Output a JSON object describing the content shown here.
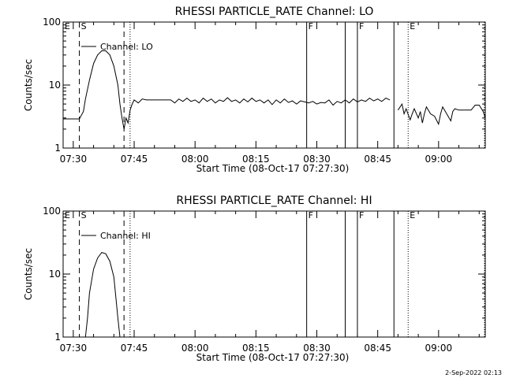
{
  "footer": {
    "timestamp": "2-Sep-2022 02:13"
  },
  "chart_data": [
    {
      "type": "line",
      "title": "RHESSI PARTICLE_RATE Channel: LO",
      "xlabel": "Start Time (08-Oct-17 07:27:30)",
      "ylabel": "Counts/sec",
      "yscale": "log",
      "ylim": [
        1,
        100
      ],
      "xlim": [
        "07:27:30",
        "09:11:30"
      ],
      "x_ticks": [
        "07:30",
        "07:45",
        "08:00",
        "08:15",
        "08:30",
        "08:45",
        "09:00"
      ],
      "y_ticks": [
        "1",
        "10",
        "100"
      ],
      "legend": "Channel: LO",
      "event_marks": [
        {
          "label": "E",
          "time": "07:27:30",
          "style": "none"
        },
        {
          "label": "S",
          "time": "07:31:30",
          "style": "dashed"
        },
        {
          "label": "",
          "time": "07:42:30",
          "style": "dashed"
        },
        {
          "label": "",
          "time": "07:44:00",
          "style": "dotted"
        },
        {
          "label": "F",
          "time": "08:27:30",
          "style": "solid"
        },
        {
          "label": "",
          "time": "08:37:00",
          "style": "solid"
        },
        {
          "label": "F",
          "time": "08:40:00",
          "style": "solid"
        },
        {
          "label": "",
          "time": "08:49:00",
          "style": "solid"
        },
        {
          "label": "E",
          "time": "08:52:30",
          "style": "dotted"
        },
        {
          "label": "",
          "time": "09:12:30",
          "style": "dotted"
        }
      ],
      "series": [
        {
          "segments": [
            [
              [
                "07:27:30",
                2.9
              ],
              [
                "07:31:30",
                2.9
              ],
              [
                "07:32:30",
                3.8
              ],
              [
                "07:33:00",
                6
              ],
              [
                "07:34:00",
                12
              ],
              [
                "07:35:00",
                22
              ],
              [
                "07:36:00",
                30
              ],
              [
                "07:37:00",
                35
              ],
              [
                "07:38:00",
                35
              ],
              [
                "07:39:00",
                30
              ],
              [
                "07:40:00",
                20
              ],
              [
                "07:41:00",
                10
              ],
              [
                "07:41:30",
                5
              ],
              [
                "07:42:00",
                3
              ],
              [
                "07:42:30",
                2
              ],
              [
                "07:43:00",
                3
              ],
              [
                "07:43:30",
                2.5
              ],
              [
                "07:44:00",
                4
              ],
              [
                "07:44:30",
                5
              ],
              [
                "07:45:00",
                5.8
              ],
              [
                "07:46:00",
                5.2
              ],
              [
                "07:47:00",
                6
              ],
              [
                "07:48:00",
                5.8
              ],
              [
                "07:50:00",
                5.8
              ],
              [
                "07:52:00",
                5.8
              ],
              [
                "07:54:00",
                5.8
              ],
              [
                "07:55:00",
                5.2
              ],
              [
                "07:56:00",
                6
              ],
              [
                "07:57:00",
                5.5
              ],
              [
                "07:58:00",
                6.2
              ],
              [
                "07:59:00",
                5.5
              ],
              [
                "08:00:00",
                5.8
              ],
              [
                "08:01:00",
                5.2
              ],
              [
                "08:02:00",
                6.2
              ],
              [
                "08:03:00",
                5.5
              ],
              [
                "08:04:00",
                6
              ],
              [
                "08:05:00",
                5.2
              ],
              [
                "08:06:00",
                5.8
              ],
              [
                "08:07:00",
                5.5
              ],
              [
                "08:08:00",
                6.3
              ],
              [
                "08:09:00",
                5.5
              ],
              [
                "08:10:00",
                5.8
              ],
              [
                "08:11:00",
                5.2
              ],
              [
                "08:12:00",
                6
              ],
              [
                "08:13:00",
                5.4
              ],
              [
                "08:14:00",
                6.2
              ],
              [
                "08:15:00",
                5.5
              ],
              [
                "08:16:00",
                5.8
              ],
              [
                "08:17:00",
                5.2
              ],
              [
                "08:18:00",
                5.8
              ],
              [
                "08:19:00",
                4.9
              ],
              [
                "08:20:00",
                5.8
              ],
              [
                "08:21:00",
                5.2
              ],
              [
                "08:22:00",
                6
              ],
              [
                "08:23:00",
                5.3
              ],
              [
                "08:24:00",
                5.6
              ],
              [
                "08:25:00",
                5
              ],
              [
                "08:26:00",
                5.6
              ],
              [
                "08:27:00",
                5.4
              ],
              [
                "08:28:00",
                5.2
              ],
              [
                "08:29:00",
                5.5
              ],
              [
                "08:30:00",
                5
              ],
              [
                "08:31:00",
                5.3
              ],
              [
                "08:32:00",
                5.2
              ],
              [
                "08:33:00",
                5.8
              ],
              [
                "08:34:00",
                4.8
              ],
              [
                "08:35:00",
                5.5
              ],
              [
                "08:36:00",
                5.2
              ],
              [
                "08:37:00",
                5.8
              ],
              [
                "08:38:00",
                5.2
              ],
              [
                "08:39:00",
                6
              ],
              [
                "08:40:00",
                5.4
              ],
              [
                "08:41:00",
                5.8
              ],
              [
                "08:42:00",
                5.5
              ],
              [
                "08:43:00",
                6.2
              ],
              [
                "08:44:00",
                5.6
              ],
              [
                "08:45:00",
                6
              ],
              [
                "08:46:00",
                5.5
              ],
              [
                "08:47:00",
                6.2
              ],
              [
                "08:48:00",
                5.8
              ]
            ],
            [
              [
                "08:50:00",
                4
              ],
              [
                "08:51:00",
                5
              ],
              [
                "08:51:30",
                3.5
              ],
              [
                "08:52:00",
                4.2
              ],
              [
                "08:53:00",
                2.8
              ],
              [
                "08:53:30",
                3.5
              ],
              [
                "08:54:00",
                4.2
              ],
              [
                "08:55:00",
                3
              ],
              [
                "08:55:30",
                3.8
              ],
              [
                "08:56:00",
                2.5
              ],
              [
                "08:56:30",
                3.5
              ],
              [
                "08:57:00",
                4.5
              ],
              [
                "08:58:00",
                3.5
              ],
              [
                "08:59:00",
                3.2
              ],
              [
                "09:00:00",
                2.4
              ],
              [
                "09:00:30",
                3.5
              ],
              [
                "09:01:00",
                4.5
              ],
              [
                "09:02:00",
                3.5
              ],
              [
                "09:03:00",
                2.7
              ],
              [
                "09:03:30",
                3.8
              ],
              [
                "09:04:00",
                4.2
              ],
              [
                "09:05:00",
                4
              ],
              [
                "09:06:00",
                4
              ],
              [
                "09:07:00",
                4
              ],
              [
                "09:08:00",
                4
              ],
              [
                "09:09:00",
                4.8
              ],
              [
                "09:10:00",
                4.8
              ],
              [
                "09:11:00",
                3.8
              ],
              [
                "09:11:30",
                3
              ]
            ]
          ]
        }
      ]
    },
    {
      "type": "line",
      "title": "RHESSI PARTICLE_RATE Channel: HI",
      "xlabel": "Start Time (08-Oct-17 07:27:30)",
      "ylabel": "Counts/sec",
      "yscale": "log",
      "ylim": [
        1,
        100
      ],
      "xlim": [
        "07:27:30",
        "09:11:30"
      ],
      "x_ticks": [
        "07:30",
        "07:45",
        "08:00",
        "08:15",
        "08:30",
        "08:45",
        "09:00"
      ],
      "y_ticks": [
        "1",
        "10",
        "100"
      ],
      "legend": "Channel: HI",
      "event_marks": [
        {
          "label": "E",
          "time": "07:27:30",
          "style": "none"
        },
        {
          "label": "S",
          "time": "07:31:30",
          "style": "dashed"
        },
        {
          "label": "",
          "time": "07:42:30",
          "style": "dashed"
        },
        {
          "label": "",
          "time": "07:44:00",
          "style": "dotted"
        },
        {
          "label": "F",
          "time": "08:27:30",
          "style": "solid"
        },
        {
          "label": "",
          "time": "08:37:00",
          "style": "solid"
        },
        {
          "label": "F",
          "time": "08:40:00",
          "style": "solid"
        },
        {
          "label": "",
          "time": "08:49:00",
          "style": "solid"
        },
        {
          "label": "E",
          "time": "08:52:30",
          "style": "dotted"
        },
        {
          "label": "",
          "time": "09:12:30",
          "style": "dotted"
        }
      ],
      "series": [
        {
          "segments": [
            [
              [
                "07:33:00",
                1
              ],
              [
                "07:33:30",
                2
              ],
              [
                "07:34:00",
                5
              ],
              [
                "07:35:00",
                12
              ],
              [
                "07:36:00",
                18
              ],
              [
                "07:37:00",
                22
              ],
              [
                "07:38:00",
                21
              ],
              [
                "07:39:00",
                16
              ],
              [
                "07:40:00",
                9
              ],
              [
                "07:41:00",
                2
              ],
              [
                "07:41:30",
                1
              ]
            ]
          ]
        }
      ]
    }
  ]
}
